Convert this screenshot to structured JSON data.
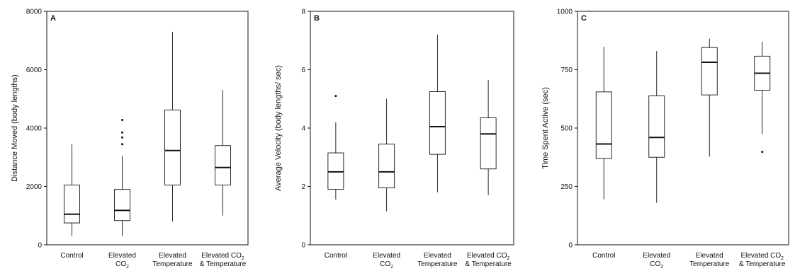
{
  "chart_data": [
    {
      "type": "box",
      "panel_label": "A",
      "ylabel": "Distance Moved (body lengths)",
      "ylim": [
        0,
        8000
      ],
      "yticks": [
        0,
        2000,
        4000,
        6000,
        8000
      ],
      "categories": [
        {
          "line1": "Control",
          "line2": "",
          "sub": ""
        },
        {
          "line1": "Elevated",
          "line2": "CO",
          "sub": "2"
        },
        {
          "line1": "Elevated",
          "line2": "Temperature",
          "sub": ""
        },
        {
          "line1": "Elevated CO",
          "sub1": "2",
          "line2": "& Temperature",
          "sub": ""
        }
      ],
      "boxes": [
        {
          "min": 300,
          "q1": 750,
          "median": 1050,
          "q3": 2050,
          "max": 3450,
          "outliers": []
        },
        {
          "min": 300,
          "q1": 830,
          "median": 1180,
          "q3": 1900,
          "max": 3050,
          "outliers": [
            3450,
            3680,
            3850,
            4280
          ]
        },
        {
          "min": 800,
          "q1": 2050,
          "median": 3230,
          "q3": 4620,
          "max": 7300,
          "outliers": []
        },
        {
          "min": 1000,
          "q1": 2050,
          "median": 2650,
          "q3": 3400,
          "max": 5300,
          "outliers": []
        }
      ]
    },
    {
      "type": "box",
      "panel_label": "B",
      "ylabel": "Average Velocity (body lengths/ sec)",
      "ylim": [
        0,
        8
      ],
      "yticks": [
        0,
        2,
        4,
        6,
        8
      ],
      "categories": [
        {
          "line1": "Control",
          "line2": "",
          "sub": ""
        },
        {
          "line1": "Elevated",
          "line2": "CO",
          "sub": "2"
        },
        {
          "line1": "Elevated",
          "line2": "Temperature",
          "sub": ""
        },
        {
          "line1": "Elevated CO",
          "sub1": "2",
          "line2": "& Temperature",
          "sub": ""
        }
      ],
      "boxes": [
        {
          "min": 1.55,
          "q1": 1.9,
          "median": 2.5,
          "q3": 3.15,
          "max": 4.2,
          "outliers": [
            5.1
          ]
        },
        {
          "min": 1.15,
          "q1": 1.95,
          "median": 2.5,
          "q3": 3.45,
          "max": 5.0,
          "outliers": []
        },
        {
          "min": 1.8,
          "q1": 3.1,
          "median": 4.05,
          "q3": 5.25,
          "max": 7.2,
          "outliers": []
        },
        {
          "min": 1.7,
          "q1": 2.6,
          "median": 3.8,
          "q3": 4.35,
          "max": 5.65,
          "outliers": []
        }
      ]
    },
    {
      "type": "box",
      "panel_label": "C",
      "ylabel": "Time Spent Active (sec)",
      "ylim": [
        0,
        1000
      ],
      "yticks": [
        0,
        250,
        500,
        750,
        1000
      ],
      "categories": [
        {
          "line1": "Control",
          "line2": "",
          "sub": ""
        },
        {
          "line1": "Elevated",
          "line2": "CO",
          "sub": "2"
        },
        {
          "line1": "Elevated",
          "line2": "Temperature",
          "sub": ""
        },
        {
          "line1": "Elevated CO",
          "sub1": "2",
          "line2": "& Temperature",
          "sub": ""
        }
      ],
      "boxes": [
        {
          "min": 195,
          "q1": 370,
          "median": 432,
          "q3": 655,
          "max": 848,
          "outliers": []
        },
        {
          "min": 180,
          "q1": 375,
          "median": 460,
          "q3": 638,
          "max": 830,
          "outliers": []
        },
        {
          "min": 378,
          "q1": 642,
          "median": 782,
          "q3": 845,
          "max": 883,
          "outliers": []
        },
        {
          "min": 475,
          "q1": 662,
          "median": 735,
          "q3": 808,
          "max": 870,
          "outliers": [
            398
          ]
        }
      ]
    }
  ]
}
